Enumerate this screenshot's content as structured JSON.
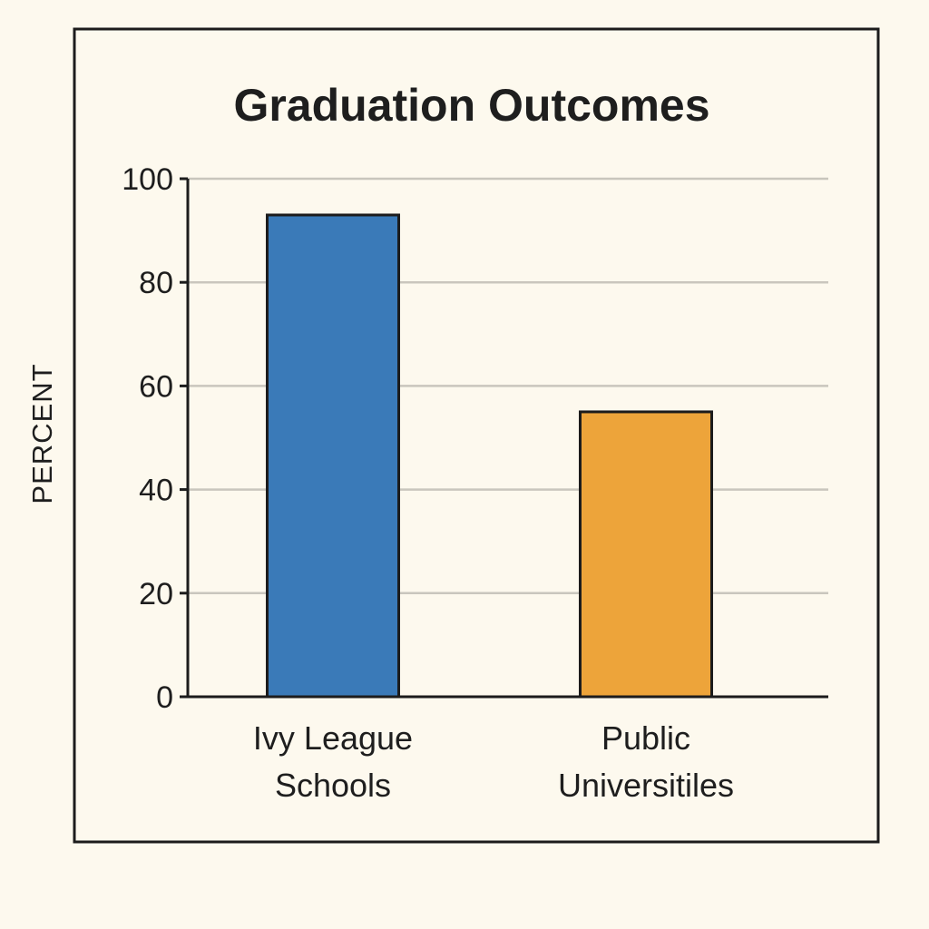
{
  "chart_data": {
    "type": "bar",
    "title": "Graduation Outcomes",
    "xlabel": "",
    "ylabel": "PERCENT",
    "categories": [
      [
        "Ivy League",
        "Schools"
      ],
      [
        "Public",
        "Universitiles"
      ]
    ],
    "values": [
      93,
      55
    ],
    "ylim": [
      0,
      100
    ],
    "yticks": [
      "0",
      "20",
      "40",
      "60",
      "80",
      "100"
    ],
    "ytick_values": [
      0,
      20,
      40,
      60,
      80,
      100
    ],
    "grid": true,
    "legend": "none",
    "colors": [
      "#3a7ab8",
      "#eda43a"
    ],
    "background": "#fdf9ee"
  }
}
